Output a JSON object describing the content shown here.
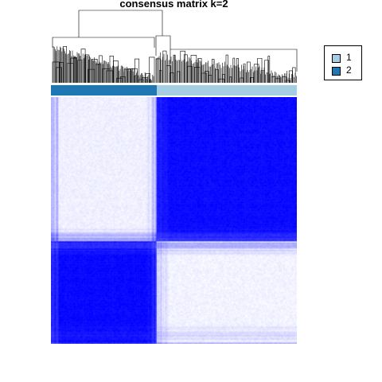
{
  "chart_data": {
    "type": "heatmap",
    "title": "consensus matrix k=2",
    "k": 2,
    "colors": {
      "low": "#FFFFFF",
      "high": "#0000FF",
      "class_1": "#A6CEE3",
      "class_2": "#1F78B4"
    },
    "column_annotation": [
      {
        "class": "2",
        "fraction": 0.43
      },
      {
        "class": "1",
        "fraction": 0.57
      }
    ],
    "blocks": [
      {
        "rows": "top",
        "cols": "class 2",
        "consensus": 0.06
      },
      {
        "rows": "top",
        "cols": "class 1",
        "consensus": 0.96
      },
      {
        "rows": "bottom",
        "cols": "class 2",
        "consensus": 0.97
      },
      {
        "rows": "bottom",
        "cols": "class 1",
        "consensus": 0.05
      }
    ],
    "legend": {
      "position": "top-right",
      "items": [
        {
          "label": "1",
          "color": "#A6CEE3"
        },
        {
          "label": "2",
          "color": "#1F78B4"
        }
      ]
    }
  }
}
